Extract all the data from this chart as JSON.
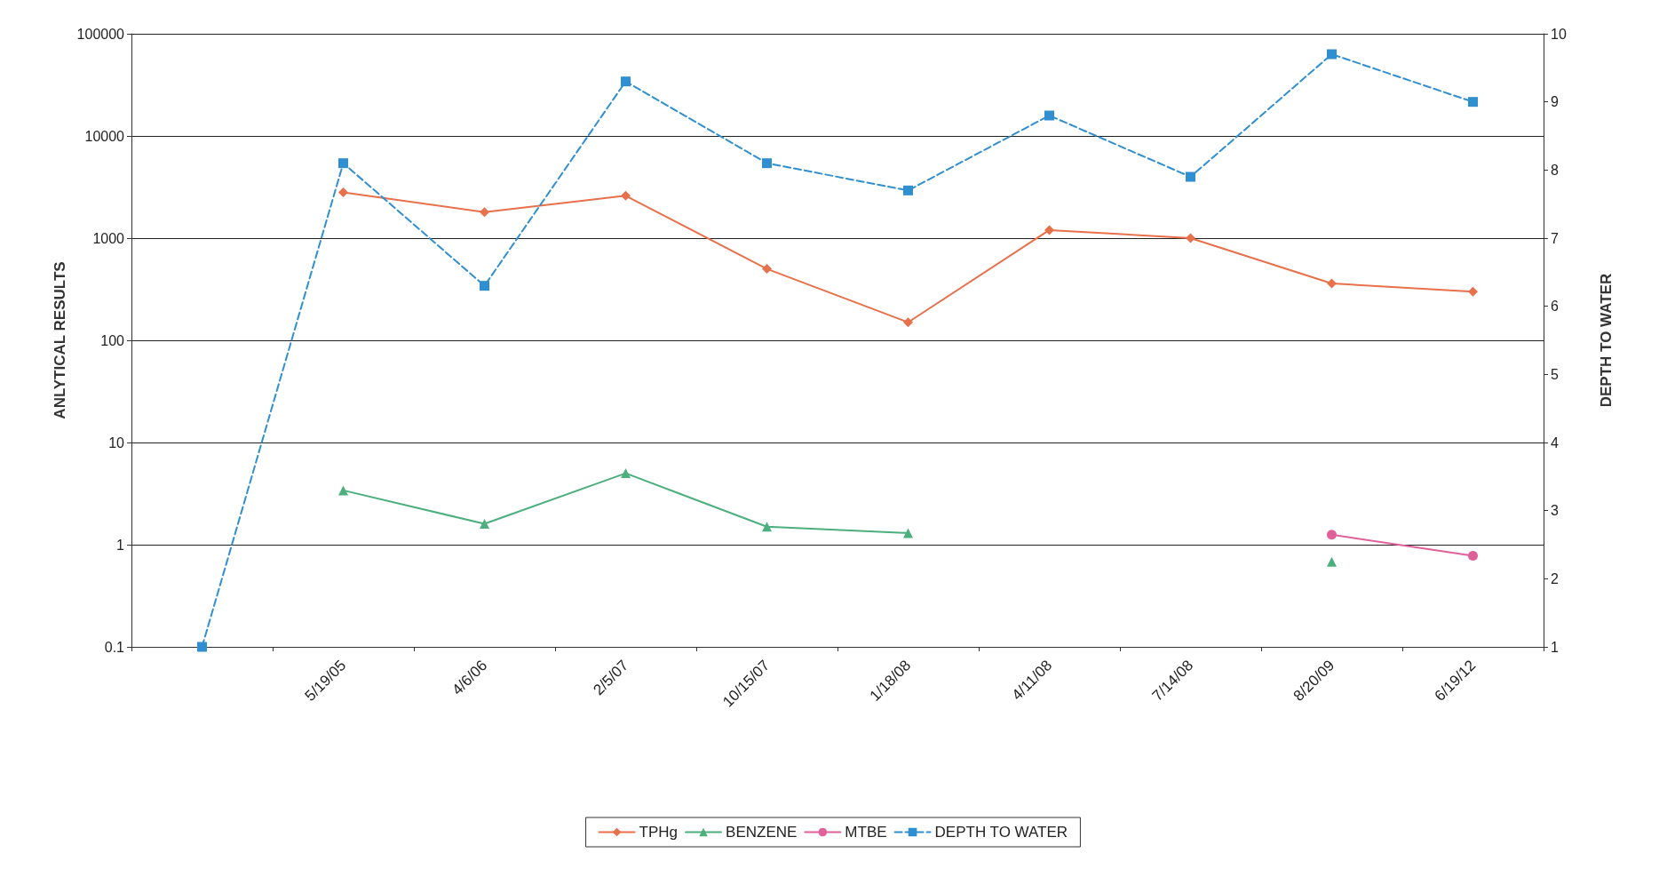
{
  "chart_data": {
    "type": "line",
    "ylabel": "ANLYTICAL RESULTS",
    "y2label": "DEPTH TO WATER",
    "categories": [
      null,
      "5/19/05",
      "4/6/06",
      "2/5/07",
      "10/15/07",
      "1/18/08",
      "4/11/08",
      "7/14/08",
      "8/20/09",
      "6/19/12"
    ],
    "series": [
      {
        "name": "TPHg",
        "color": "#e8704a",
        "marker": "diamond",
        "values": [
          null,
          2800,
          1800,
          2600,
          500,
          150,
          1200,
          1000,
          360,
          300
        ]
      },
      {
        "name": "BENZENE",
        "color": "#4caf7d",
        "marker": "triangle",
        "values": [
          null,
          3.4,
          1.6,
          5.0,
          1.5,
          1.3,
          null,
          null,
          0.68,
          null
        ]
      },
      {
        "name": "MTBE",
        "color": "#e0609a",
        "marker": "circle",
        "values": [
          null,
          null,
          null,
          null,
          null,
          null,
          null,
          null,
          1.25,
          0.78
        ]
      },
      {
        "name": "DEPTH TO WATER",
        "color": "#2f8fd0",
        "marker": "square",
        "line_style": "dashed",
        "axis": "y2",
        "values": [
          1,
          8.1,
          6.3,
          9.3,
          8.1,
          7.7,
          8.8,
          7.9,
          9.7,
          9.0
        ]
      }
    ],
    "log": "y",
    "ylim": [
      0.1,
      100000
    ],
    "yticks": [
      0.1,
      1,
      10,
      100,
      1000,
      10000,
      100000
    ],
    "y2lim": [
      1,
      10
    ],
    "y2ticks": [
      1,
      2,
      3,
      4,
      5,
      6,
      7,
      8,
      9,
      10
    ],
    "grid": "y",
    "legend": "bottom"
  }
}
